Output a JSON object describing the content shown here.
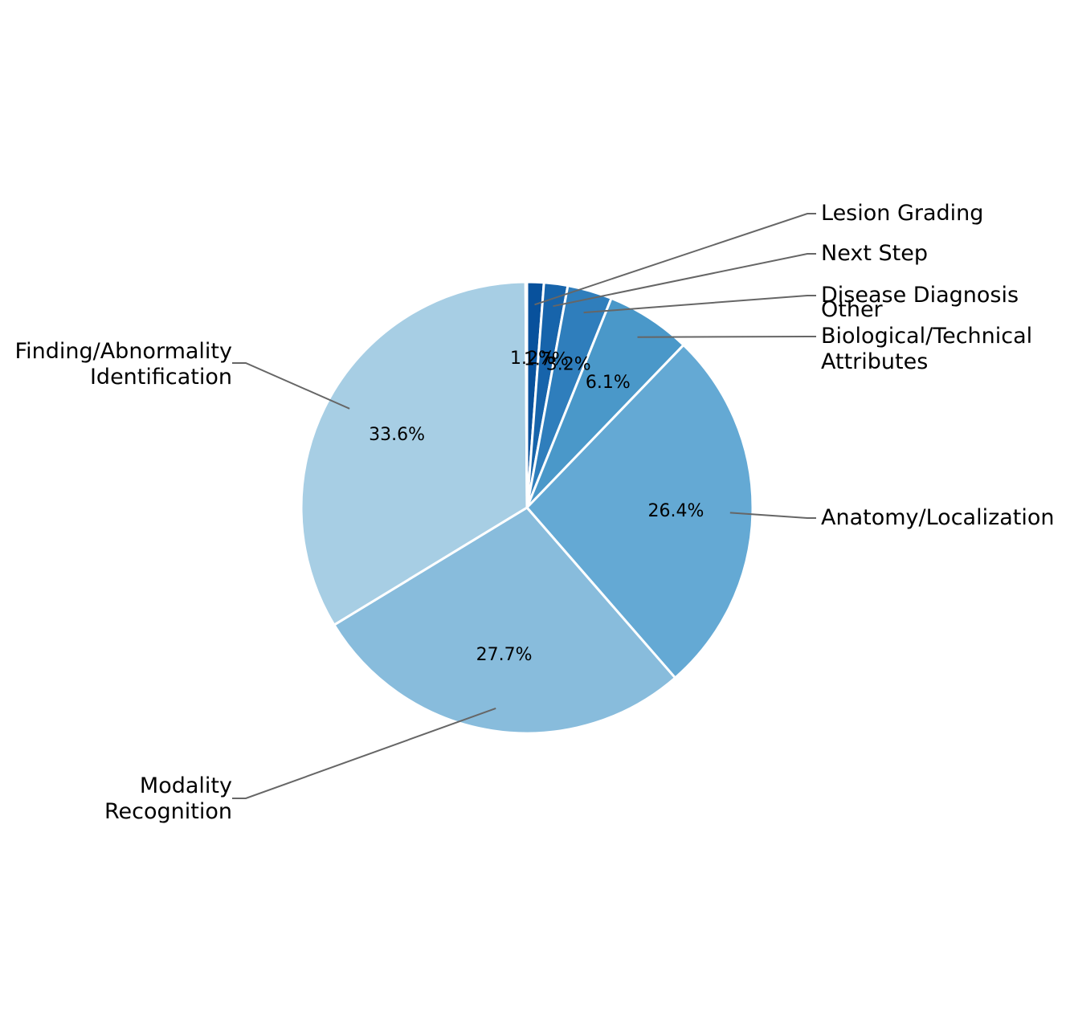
{
  "chart_data": {
    "type": "pie",
    "slices": [
      {
        "label": "Lesion Grading",
        "value": 1.2,
        "pct_label": "1.2%",
        "color": "#08519c"
      },
      {
        "label": "Next Step",
        "value": 1.7,
        "pct_label": "1.7%",
        "color": "#1764ab"
      },
      {
        "label": "Disease Diagnosis",
        "value": 3.2,
        "pct_label": "3.2%",
        "color": "#2f7ebc"
      },
      {
        "label": "Biological/Technical Attributes",
        "value": 6.1,
        "pct_label": "6.1%",
        "color": "#4a98c9"
      },
      {
        "label": "Anatomy/Localization",
        "value": 26.4,
        "pct_label": "26.4%",
        "color": "#64a9d4"
      },
      {
        "label": "Modality Recognition",
        "value": 27.7,
        "pct_label": "27.7%",
        "color": "#88bcdc"
      },
      {
        "label": "Finding/Abnormality Identification",
        "value": 33.6,
        "pct_label": "33.6%",
        "color": "#a7cee4"
      },
      {
        "label": "Other",
        "value": 0.1,
        "pct_label": "",
        "color": "#08306b"
      }
    ],
    "start_angle_deg": 90,
    "direction": "clockwise"
  }
}
